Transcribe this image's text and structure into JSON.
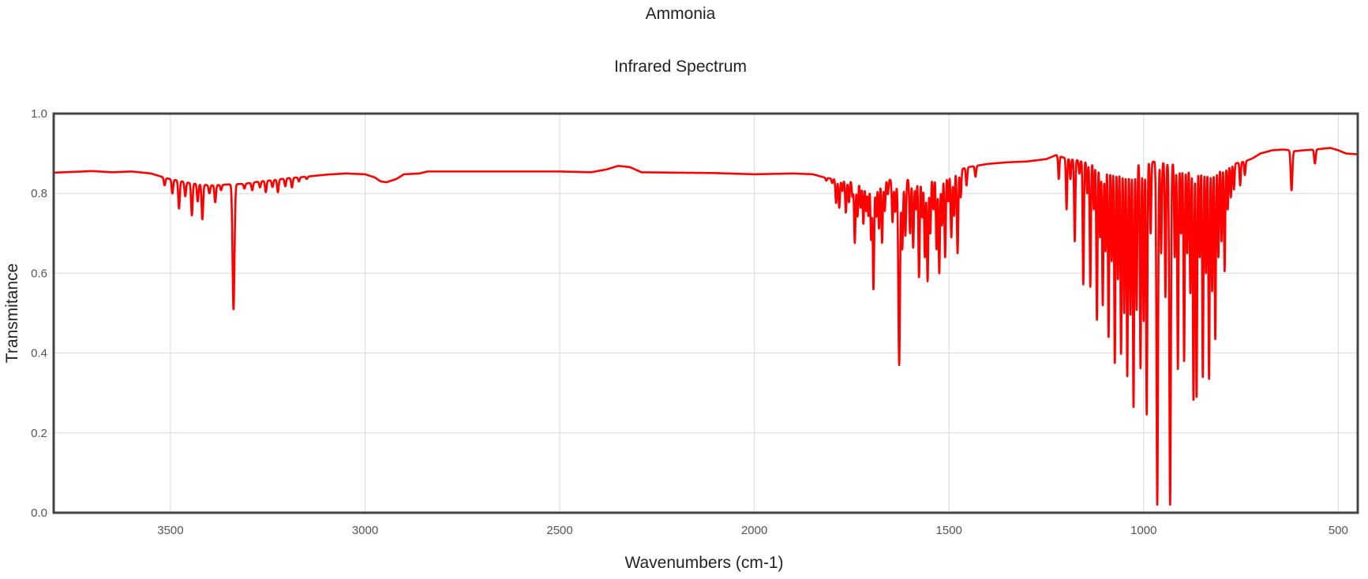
{
  "chart_data": {
    "type": "line",
    "title": "Ammonia",
    "subtitle": "Infrared Spectrum",
    "xlabel": "Wavenumbers (cm-1)",
    "ylabel": "Transmitance",
    "xlim": [
      3800,
      450
    ],
    "ylim": [
      0,
      1.0
    ],
    "x_reversed": true,
    "grid": true,
    "x_ticks": [
      3500,
      3000,
      2500,
      2000,
      1500,
      1000,
      500
    ],
    "y_ticks": [
      0.0,
      0.2,
      0.4,
      0.6,
      0.8,
      1.0
    ],
    "x_tick_labels": [
      "3500",
      "3000",
      "2500",
      "2000",
      "1500",
      "1000",
      "500"
    ],
    "y_tick_labels": [
      "0.0",
      "0.2",
      "0.4",
      "0.6",
      "0.8",
      "1.0"
    ],
    "colors": {
      "line": "#ff0000",
      "frame": "#444444",
      "grid": "#d9d9d9"
    },
    "series": [
      {
        "baseline": [
          [
            3800,
            0.852
          ],
          [
            3700,
            0.856
          ],
          [
            3650,
            0.853
          ],
          [
            3600,
            0.855
          ],
          [
            3550,
            0.85
          ],
          [
            3510,
            0.838
          ],
          [
            3490,
            0.834
          ],
          [
            3450,
            0.826
          ],
          [
            3400,
            0.82
          ],
          [
            3360,
            0.822
          ],
          [
            3340,
            0.823
          ],
          [
            3310,
            0.824
          ],
          [
            3270,
            0.83
          ],
          [
            3230,
            0.834
          ],
          [
            3200,
            0.838
          ],
          [
            3150,
            0.842
          ],
          [
            3100,
            0.847
          ],
          [
            3050,
            0.85
          ],
          [
            3000,
            0.848
          ],
          [
            2975,
            0.84
          ],
          [
            2960,
            0.83
          ],
          [
            2945,
            0.828
          ],
          [
            2920,
            0.836
          ],
          [
            2900,
            0.848
          ],
          [
            2880,
            0.849
          ],
          [
            2860,
            0.85
          ],
          [
            2840,
            0.855
          ],
          [
            2800,
            0.855
          ],
          [
            2700,
            0.855
          ],
          [
            2600,
            0.855
          ],
          [
            2500,
            0.855
          ],
          [
            2420,
            0.853
          ],
          [
            2380,
            0.86
          ],
          [
            2350,
            0.869
          ],
          [
            2320,
            0.866
          ],
          [
            2290,
            0.853
          ],
          [
            2200,
            0.852
          ],
          [
            2100,
            0.851
          ],
          [
            2000,
            0.848
          ],
          [
            1900,
            0.85
          ],
          [
            1850,
            0.848
          ],
          [
            1820,
            0.84
          ],
          [
            1780,
            0.834
          ],
          [
            1740,
            0.832
          ],
          [
            1700,
            0.834
          ],
          [
            1660,
            0.838
          ],
          [
            1640,
            0.83
          ],
          [
            1625,
            0.825
          ],
          [
            1600,
            0.838
          ],
          [
            1560,
            0.846
          ],
          [
            1520,
            0.852
          ],
          [
            1480,
            0.858
          ],
          [
            1450,
            0.866
          ],
          [
            1400,
            0.874
          ],
          [
            1350,
            0.878
          ],
          [
            1300,
            0.88
          ],
          [
            1250,
            0.886
          ],
          [
            1225,
            0.896
          ],
          [
            1200,
            0.888
          ],
          [
            1150,
            0.88
          ],
          [
            1100,
            0.874
          ],
          [
            1050,
            0.875
          ],
          [
            1000,
            0.878
          ],
          [
            970,
            0.88
          ],
          [
            940,
            0.876
          ],
          [
            900,
            0.876
          ],
          [
            860,
            0.876
          ],
          [
            820,
            0.874
          ],
          [
            780,
            0.872
          ],
          [
            760,
            0.876
          ],
          [
            740,
            0.88
          ],
          [
            720,
            0.888
          ],
          [
            700,
            0.9
          ],
          [
            670,
            0.908
          ],
          [
            640,
            0.91
          ],
          [
            610,
            0.906
          ],
          [
            590,
            0.908
          ],
          [
            560,
            0.91
          ],
          [
            540,
            0.912
          ],
          [
            520,
            0.914
          ],
          [
            500,
            0.908
          ],
          [
            480,
            0.9
          ],
          [
            450,
            0.898
          ]
        ],
        "peaks": [
          [
            3515,
            0.82,
            2.0
          ],
          [
            3495,
            0.8,
            2.0
          ],
          [
            3478,
            0.762,
            2.0
          ],
          [
            3462,
            0.793,
            2.0
          ],
          [
            3445,
            0.745,
            2.0
          ],
          [
            3430,
            0.78,
            2.0
          ],
          [
            3418,
            0.735,
            2.0
          ],
          [
            3400,
            0.8,
            2.0
          ],
          [
            3385,
            0.778,
            2.0
          ],
          [
            3370,
            0.808,
            2.0
          ],
          [
            3338,
            0.51,
            2.5
          ],
          [
            3310,
            0.812,
            2.0
          ],
          [
            3290,
            0.808,
            2.0
          ],
          [
            3270,
            0.815,
            2.0
          ],
          [
            3255,
            0.803,
            2.0
          ],
          [
            3238,
            0.816,
            2.0
          ],
          [
            3224,
            0.803,
            2.0
          ],
          [
            3205,
            0.818,
            2.0
          ],
          [
            3188,
            0.815,
            2.0
          ],
          [
            3170,
            0.83,
            2.0
          ],
          [
            3150,
            0.836,
            2.0
          ],
          [
            1815,
            0.832,
            1.8
          ],
          [
            1800,
            0.826,
            1.8
          ],
          [
            1790,
            0.776,
            1.8
          ],
          [
            1782,
            0.764,
            1.8
          ],
          [
            1774,
            0.806,
            1.8
          ],
          [
            1765,
            0.752,
            1.8
          ],
          [
            1757,
            0.778,
            1.8
          ],
          [
            1748,
            0.792,
            1.8
          ],
          [
            1742,
            0.676,
            1.8
          ],
          [
            1735,
            0.742,
            1.8
          ],
          [
            1727,
            0.764,
            1.8
          ],
          [
            1720,
            0.724,
            1.8
          ],
          [
            1713,
            0.756,
            1.8
          ],
          [
            1707,
            0.744,
            1.8
          ],
          [
            1700,
            0.684,
            1.8
          ],
          [
            1694,
            0.56,
            1.8
          ],
          [
            1687,
            0.742,
            1.8
          ],
          [
            1680,
            0.712,
            1.8
          ],
          [
            1672,
            0.676,
            1.8
          ],
          [
            1665,
            0.756,
            1.8
          ],
          [
            1657,
            0.798,
            1.8
          ],
          [
            1645,
            0.728,
            1.8
          ],
          [
            1638,
            0.754,
            1.8
          ],
          [
            1628,
            0.37,
            2.2
          ],
          [
            1620,
            0.66,
            1.8
          ],
          [
            1612,
            0.694,
            1.8
          ],
          [
            1600,
            0.7,
            1.8
          ],
          [
            1592,
            0.664,
            1.8
          ],
          [
            1585,
            0.76,
            1.8
          ],
          [
            1577,
            0.59,
            1.8
          ],
          [
            1569,
            0.74,
            1.8
          ],
          [
            1562,
            0.64,
            1.8
          ],
          [
            1555,
            0.58,
            1.8
          ],
          [
            1548,
            0.7,
            1.8
          ],
          [
            1540,
            0.76,
            1.8
          ],
          [
            1532,
            0.66,
            1.8
          ],
          [
            1525,
            0.6,
            1.8
          ],
          [
            1518,
            0.72,
            1.8
          ],
          [
            1510,
            0.64,
            1.8
          ],
          [
            1502,
            0.78,
            1.8
          ],
          [
            1494,
            0.69,
            1.8
          ],
          [
            1487,
            0.744,
            1.8
          ],
          [
            1478,
            0.65,
            1.8
          ],
          [
            1470,
            0.79,
            1.8
          ],
          [
            1455,
            0.82,
            1.8
          ],
          [
            1432,
            0.842,
            1.8
          ],
          [
            1218,
            0.836,
            1.6
          ],
          [
            1198,
            0.76,
            1.6
          ],
          [
            1188,
            0.836,
            1.6
          ],
          [
            1177,
            0.68,
            1.6
          ],
          [
            1165,
            0.85,
            1.6
          ],
          [
            1155,
            0.572,
            1.6
          ],
          [
            1145,
            0.8,
            1.6
          ],
          [
            1137,
            0.566,
            1.6
          ],
          [
            1128,
            0.76,
            1.6
          ],
          [
            1120,
            0.483,
            1.6
          ],
          [
            1112,
            0.69,
            1.6
          ],
          [
            1105,
            0.52,
            1.6
          ],
          [
            1098,
            0.655,
            1.6
          ],
          [
            1090,
            0.44,
            1.6
          ],
          [
            1082,
            0.63,
            1.6
          ],
          [
            1074,
            0.375,
            1.6
          ],
          [
            1066,
            0.585,
            1.6
          ],
          [
            1058,
            0.398,
            1.6
          ],
          [
            1050,
            0.5,
            1.6
          ],
          [
            1042,
            0.342,
            1.6
          ],
          [
            1034,
            0.496,
            1.6
          ],
          [
            1026,
            0.265,
            1.6
          ],
          [
            1018,
            0.508,
            1.6
          ],
          [
            1008,
            0.362,
            1.6
          ],
          [
            1000,
            0.48,
            1.6
          ],
          [
            992,
            0.246,
            1.6
          ],
          [
            982,
            0.7,
            1.6
          ],
          [
            965,
            0.02,
            2.0
          ],
          [
            955,
            0.65,
            1.6
          ],
          [
            944,
            0.54,
            1.6
          ],
          [
            932,
            0.02,
            2.0
          ],
          [
            920,
            0.64,
            1.6
          ],
          [
            912,
            0.36,
            1.6
          ],
          [
            904,
            0.7,
            1.6
          ],
          [
            896,
            0.38,
            1.6
          ],
          [
            888,
            0.65,
            1.6
          ],
          [
            880,
            0.55,
            1.6
          ],
          [
            872,
            0.283,
            1.6
          ],
          [
            864,
            0.29,
            1.6
          ],
          [
            856,
            0.64,
            1.6
          ],
          [
            848,
            0.34,
            1.6
          ],
          [
            840,
            0.6,
            1.6
          ],
          [
            832,
            0.335,
            1.6
          ],
          [
            824,
            0.555,
            1.6
          ],
          [
            816,
            0.435,
            1.6
          ],
          [
            808,
            0.64,
            1.6
          ],
          [
            800,
            0.68,
            1.6
          ],
          [
            792,
            0.605,
            1.6
          ],
          [
            784,
            0.76,
            1.6
          ],
          [
            776,
            0.79,
            1.6
          ],
          [
            768,
            0.81,
            1.6
          ],
          [
            752,
            0.82,
            1.6
          ],
          [
            740,
            0.846,
            1.6
          ],
          [
            620,
            0.808,
            2.2
          ],
          [
            560,
            0.875,
            2.0
          ]
        ]
      }
    ]
  }
}
